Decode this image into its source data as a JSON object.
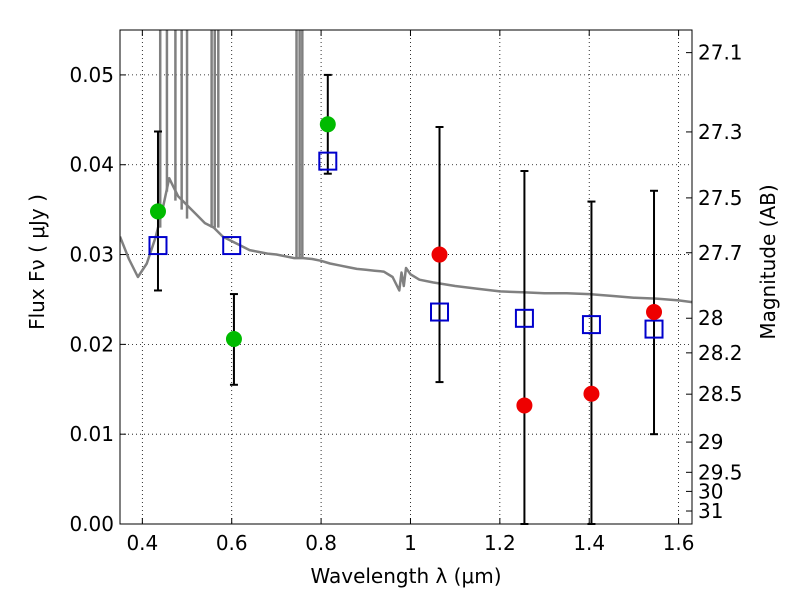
{
  "chart_data": {
    "type": "scatter",
    "xlabel": "Wavelength  λ (μm)",
    "ylabel": "Flux  Fν  ( μJy )",
    "ylabel_right": "Magnitude (AB)",
    "xlim": [
      0.35,
      1.63
    ],
    "ylim": [
      0.0,
      0.055
    ],
    "grid": true,
    "x_ticks": [
      0.4,
      0.6,
      0.8,
      1.0,
      1.2,
      1.4,
      1.6
    ],
    "x_tick_labels": [
      "0.4",
      "0.6",
      "0.8",
      "1",
      "1.2",
      "1.4",
      "1.6"
    ],
    "y_ticks": [
      0.0,
      0.01,
      0.02,
      0.03,
      0.04,
      0.05
    ],
    "y_tick_labels": [
      "0.00",
      "0.01",
      "0.02",
      "0.03",
      "0.04",
      "0.05"
    ],
    "right_ticks": [
      {
        "label": "27.1",
        "mag": 27.1
      },
      {
        "label": "27.3",
        "mag": 27.3
      },
      {
        "label": "27.5",
        "mag": 27.5
      },
      {
        "label": "27.7",
        "mag": 27.7
      },
      {
        "label": "28",
        "mag": 28.0
      },
      {
        "label": "28.2",
        "mag": 28.2
      },
      {
        "label": "28.5",
        "mag": 28.5
      },
      {
        "label": "29",
        "mag": 29.0
      },
      {
        "label": "29.5",
        "mag": 29.5
      },
      {
        "label": "30",
        "mag": 30.0
      },
      {
        "label": "31",
        "mag": 31.0
      }
    ],
    "colors": {
      "detections": "#00bb00",
      "upper_limits": "#ee0000",
      "model_points": "#0000cc",
      "model_spectrum": "#808080",
      "error_bars": "#000000"
    },
    "series": [
      {
        "kind": "spectrum",
        "x": [
          0.35,
          0.37,
          0.39,
          0.41,
          0.43,
          0.445,
          0.46,
          0.47,
          0.48,
          0.49,
          0.5,
          0.52,
          0.54,
          0.56,
          0.58,
          0.6,
          0.62,
          0.64,
          0.66,
          0.68,
          0.7,
          0.72,
          0.74,
          0.76,
          0.78,
          0.8,
          0.82,
          0.84,
          0.86,
          0.88,
          0.9,
          0.92,
          0.94,
          0.96,
          0.975,
          0.98,
          0.985,
          0.99,
          1.0,
          1.02,
          1.05,
          1.1,
          1.15,
          1.2,
          1.25,
          1.3,
          1.35,
          1.4,
          1.45,
          1.5,
          1.55,
          1.6,
          1.63
        ],
        "y": [
          0.032,
          0.0295,
          0.0275,
          0.029,
          0.032,
          0.035,
          0.0385,
          0.0375,
          0.0365,
          0.036,
          0.0355,
          0.0345,
          0.0335,
          0.033,
          0.032,
          0.0315,
          0.031,
          0.0305,
          0.0303,
          0.0301,
          0.03,
          0.0298,
          0.0296,
          0.0296,
          0.0295,
          0.0293,
          0.029,
          0.0288,
          0.0286,
          0.0284,
          0.0283,
          0.0282,
          0.0281,
          0.0275,
          0.026,
          0.028,
          0.0265,
          0.0285,
          0.0278,
          0.0272,
          0.0269,
          0.0265,
          0.0262,
          0.0259,
          0.0258,
          0.0257,
          0.0257,
          0.0256,
          0.0254,
          0.0252,
          0.0251,
          0.0249,
          0.0247
        ]
      },
      {
        "kind": "emission_lines",
        "lines": [
          {
            "x": 0.44,
            "top": 0.055,
            "base": 0.033
          },
          {
            "x": 0.455,
            "top": 0.055,
            "base": 0.037
          },
          {
            "x": 0.474,
            "top": 0.055,
            "base": 0.036
          },
          {
            "x": 0.488,
            "top": 0.055,
            "base": 0.035
          },
          {
            "x": 0.5,
            "top": 0.055,
            "base": 0.034
          },
          {
            "x": 0.555,
            "top": 0.055,
            "base": 0.033
          },
          {
            "x": 0.562,
            "top": 0.055,
            "base": 0.033
          },
          {
            "x": 0.57,
            "top": 0.055,
            "base": 0.033
          },
          {
            "x": 0.745,
            "top": 0.055,
            "base": 0.0295
          },
          {
            "x": 0.752,
            "top": 0.055,
            "base": 0.0295
          },
          {
            "x": 0.758,
            "top": 0.055,
            "base": 0.0295
          }
        ]
      },
      {
        "kind": "model_points",
        "x": [
          0.435,
          0.6,
          0.815,
          1.065,
          1.255,
          1.405,
          1.545
        ],
        "y": [
          0.031,
          0.031,
          0.0404,
          0.0236,
          0.0229,
          0.0222,
          0.0217
        ]
      },
      {
        "kind": "detections",
        "x": [
          0.435,
          0.605,
          0.815
        ],
        "y": [
          0.0348,
          0.0206,
          0.0445
        ],
        "yerr_low": [
          0.026,
          0.0155,
          0.039
        ],
        "yerr_high": [
          0.0437,
          0.0256,
          0.05
        ]
      },
      {
        "kind": "upper_limits",
        "x": [
          1.065,
          1.255,
          1.405,
          1.545
        ],
        "y": [
          0.03,
          0.0132,
          0.0145,
          0.0236
        ],
        "yerr_low": [
          0.0158,
          0.0,
          0.0,
          0.01
        ],
        "yerr_high": [
          0.0442,
          0.0393,
          0.0359,
          0.0371
        ]
      }
    ]
  }
}
